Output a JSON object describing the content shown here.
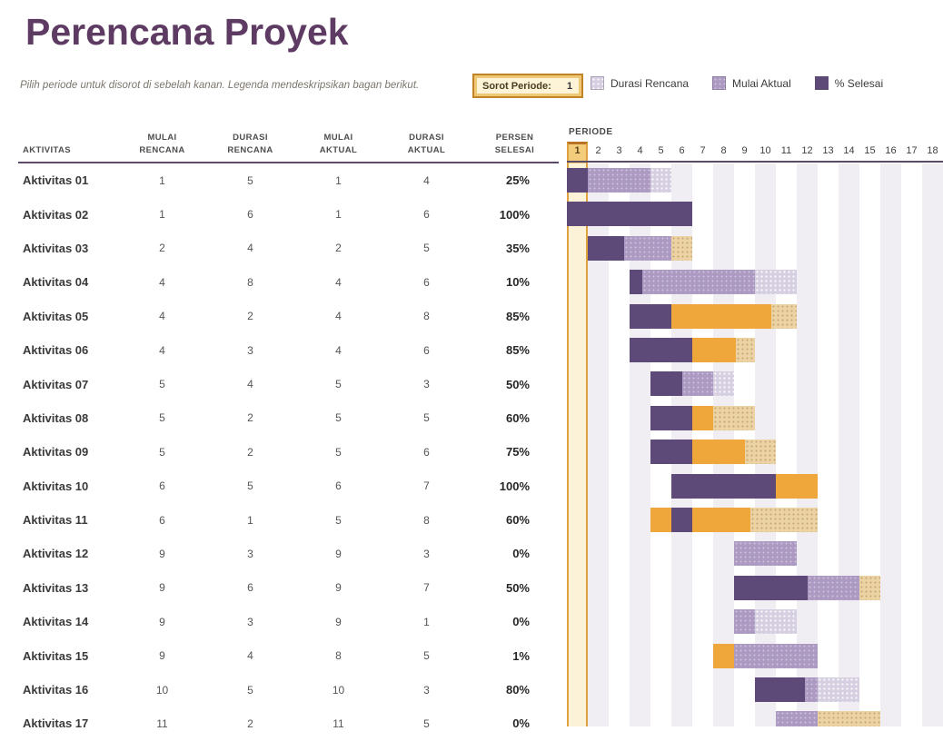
{
  "title": "Perencana Proyek",
  "subtitle": "Pilih periode untuk disorot di sebelah kanan.  Legenda mendeskripsikan bagan berikut.",
  "highlight": {
    "label": "Sorot Periode:",
    "value": "1"
  },
  "legend": {
    "items": [
      {
        "label": "Durasi Rencana",
        "type": "plan"
      },
      {
        "label": "Mulai Aktual",
        "type": "actual"
      },
      {
        "label": "% Selesai",
        "type": "complete"
      }
    ]
  },
  "table": {
    "activity_header": "AKTIVITAS",
    "col_headers": [
      [
        "MULAI",
        "RENCANA"
      ],
      [
        "DURASI",
        "RENCANA"
      ],
      [
        "MULAI",
        "AKTUAL"
      ],
      [
        "DURASI",
        "AKTUAL"
      ],
      [
        "PERSEN",
        "SELESAI"
      ]
    ]
  },
  "gantt": {
    "period_label": "PERIODE"
  },
  "colors": {
    "title": "#5e3b62",
    "line": "#5b4a68",
    "plan": "#d6cee1",
    "actual": "#ac9ac2",
    "complete": "#5e4a78",
    "gold": "#efa73c",
    "tan": "#ecd3a4",
    "band": "#f0edf3",
    "hl_border": "#dfa13f",
    "hl_dark": "#b97423",
    "hl_head": "#f4cd7c",
    "hl_fill": "rgba(247,222,151,0.38)"
  },
  "chart_data": {
    "type": "gantt",
    "title": "Perencana Proyek",
    "period_axis_label": "PERIODE",
    "period_numbers": [
      1,
      2,
      3,
      4,
      5,
      6,
      7,
      8,
      9,
      10,
      11,
      12,
      13,
      14,
      15,
      16,
      17,
      18
    ],
    "highlight_period": 1,
    "legend": [
      "Durasi Rencana",
      "Mulai Aktual",
      "% Selesai"
    ],
    "rows": [
      {
        "name": "Aktivitas 01",
        "plan_start": 1,
        "plan_dur": 5,
        "actual_start": 1,
        "actual_dur": 4,
        "pct": 0.25,
        "pct_label": "25%"
      },
      {
        "name": "Aktivitas 02",
        "plan_start": 1,
        "plan_dur": 6,
        "actual_start": 1,
        "actual_dur": 6,
        "pct": 1.0,
        "pct_label": "100%"
      },
      {
        "name": "Aktivitas 03",
        "plan_start": 2,
        "plan_dur": 4,
        "actual_start": 2,
        "actual_dur": 5,
        "pct": 0.35,
        "pct_label": "35%"
      },
      {
        "name": "Aktivitas 04",
        "plan_start": 4,
        "plan_dur": 8,
        "actual_start": 4,
        "actual_dur": 6,
        "pct": 0.1,
        "pct_label": "10%"
      },
      {
        "name": "Aktivitas 05",
        "plan_start": 4,
        "plan_dur": 2,
        "actual_start": 4,
        "actual_dur": 8,
        "pct": 0.85,
        "pct_label": "85%"
      },
      {
        "name": "Aktivitas 06",
        "plan_start": 4,
        "plan_dur": 3,
        "actual_start": 4,
        "actual_dur": 6,
        "pct": 0.85,
        "pct_label": "85%"
      },
      {
        "name": "Aktivitas 07",
        "plan_start": 5,
        "plan_dur": 4,
        "actual_start": 5,
        "actual_dur": 3,
        "pct": 0.5,
        "pct_label": "50%"
      },
      {
        "name": "Aktivitas 08",
        "plan_start": 5,
        "plan_dur": 2,
        "actual_start": 5,
        "actual_dur": 5,
        "pct": 0.6,
        "pct_label": "60%"
      },
      {
        "name": "Aktivitas 09",
        "plan_start": 5,
        "plan_dur": 2,
        "actual_start": 5,
        "actual_dur": 6,
        "pct": 0.75,
        "pct_label": "75%"
      },
      {
        "name": "Aktivitas 10",
        "plan_start": 6,
        "plan_dur": 5,
        "actual_start": 6,
        "actual_dur": 7,
        "pct": 1.0,
        "pct_label": "100%"
      },
      {
        "name": "Aktivitas 11",
        "plan_start": 6,
        "plan_dur": 1,
        "actual_start": 5,
        "actual_dur": 8,
        "pct": 0.6,
        "pct_label": "60%"
      },
      {
        "name": "Aktivitas 12",
        "plan_start": 9,
        "plan_dur": 3,
        "actual_start": 9,
        "actual_dur": 3,
        "pct": 0.0,
        "pct_label": "0%"
      },
      {
        "name": "Aktivitas 13",
        "plan_start": 9,
        "plan_dur": 6,
        "actual_start": 9,
        "actual_dur": 7,
        "pct": 0.5,
        "pct_label": "50%"
      },
      {
        "name": "Aktivitas 14",
        "plan_start": 9,
        "plan_dur": 3,
        "actual_start": 9,
        "actual_dur": 1,
        "pct": 0.0,
        "pct_label": "0%"
      },
      {
        "name": "Aktivitas 15",
        "plan_start": 9,
        "plan_dur": 4,
        "actual_start": 8,
        "actual_dur": 5,
        "pct": 0.01,
        "pct_label": "1%"
      },
      {
        "name": "Aktivitas 16",
        "plan_start": 10,
        "plan_dur": 5,
        "actual_start": 10,
        "actual_dur": 3,
        "pct": 0.8,
        "pct_label": "80%"
      },
      {
        "name": "Aktivitas 17",
        "plan_start": 11,
        "plan_dur": 2,
        "actual_start": 11,
        "actual_dur": 5,
        "pct": 0.0,
        "pct_label": "0%"
      }
    ]
  }
}
